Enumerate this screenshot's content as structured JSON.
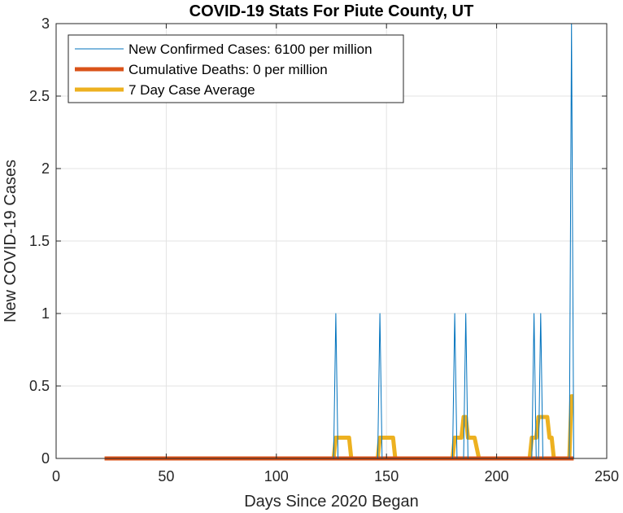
{
  "chart_data": {
    "type": "line",
    "title": "COVID-19 Stats For Piute County, UT",
    "xlabel": "Days Since 2020 Began",
    "ylabel": "New COVID-19 Cases",
    "xlim": [
      0,
      250
    ],
    "ylim": [
      0,
      3
    ],
    "xticks": [
      "0",
      "50",
      "100",
      "150",
      "200",
      "250"
    ],
    "yticks": [
      "0",
      "0.5",
      "1",
      "1.5",
      "2",
      "2.5",
      "3"
    ],
    "grid": true,
    "legend_position": "top-left",
    "series": [
      {
        "name": "New Confirmed Cases: 6100 per million",
        "color": "#0072BD",
        "line_width": "thin",
        "x": [
          22,
          126,
          127,
          128,
          146,
          147,
          148,
          180,
          181,
          182,
          185,
          186,
          187,
          216,
          217,
          218,
          219,
          220,
          221,
          233,
          234,
          235
        ],
        "y": [
          0,
          0,
          1,
          0,
          0,
          1,
          0,
          0,
          1,
          0,
          0,
          1,
          0,
          0,
          1,
          0,
          0,
          1,
          0,
          0,
          3,
          0
        ]
      },
      {
        "name": "Cumulative Deaths: 0 per million",
        "color": "#D95319",
        "line_width": "thick",
        "x": [
          22,
          235
        ],
        "y": [
          0,
          0
        ]
      },
      {
        "name": "7 Day Case Average",
        "color": "#EDB120",
        "line_width": "thick",
        "x": [
          22,
          126,
          127,
          128,
          133,
          134,
          146,
          147,
          148,
          153,
          154,
          180,
          181,
          182,
          184,
          185,
          186,
          187,
          188,
          190,
          192,
          215,
          216,
          217,
          218,
          219,
          220,
          223,
          224,
          225,
          226,
          227,
          233,
          234,
          235
        ],
        "y": [
          0,
          0,
          0.143,
          0.143,
          0.143,
          0,
          0,
          0.143,
          0.143,
          0.143,
          0,
          0,
          0.143,
          0.143,
          0.143,
          0.286,
          0.286,
          0.143,
          0.143,
          0.143,
          0,
          0,
          0.143,
          0.143,
          0.143,
          0.286,
          0.286,
          0.286,
          0.143,
          0.143,
          0,
          0,
          0,
          0.429,
          0.429
        ]
      }
    ]
  }
}
